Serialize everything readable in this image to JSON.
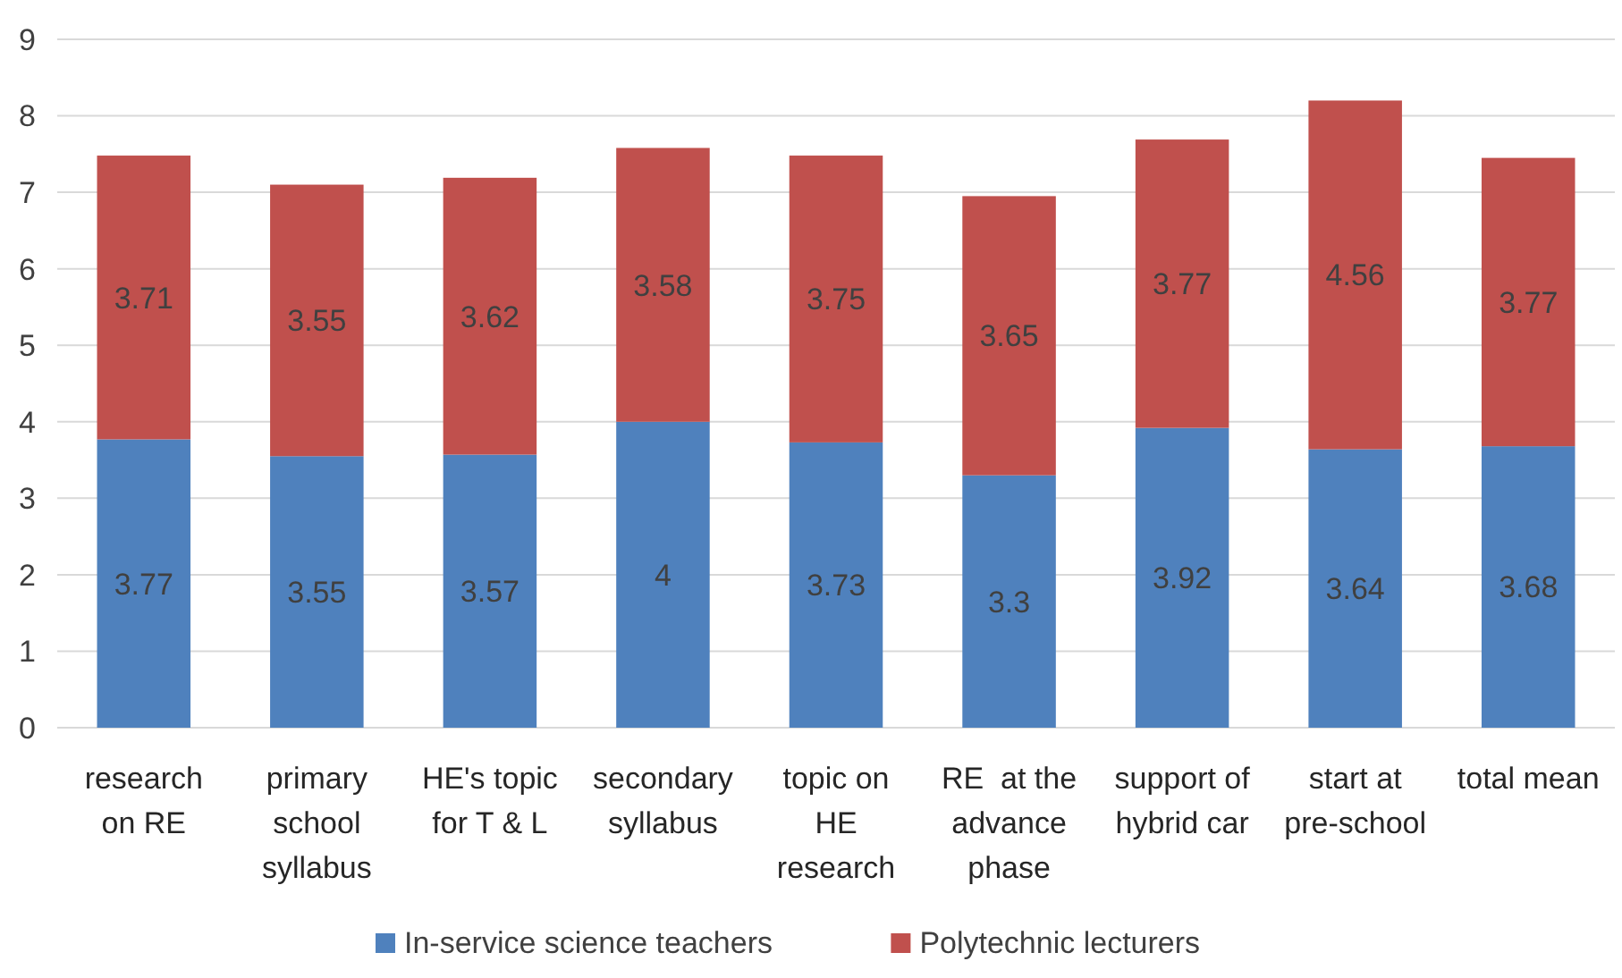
{
  "chart_data": {
    "type": "bar",
    "stacked": true,
    "categories": [
      "research on RE",
      "primary school syllabus",
      "HE's topic for T & L",
      "secondary syllabus",
      "topic on HE research",
      "RE  at the advance phase",
      "support of hybrid car",
      "start at pre-school",
      "total mean"
    ],
    "series": [
      {
        "name": "In-service science teachers",
        "color": "#4f81bd",
        "values": [
          3.77,
          3.55,
          3.57,
          4,
          3.73,
          3.3,
          3.92,
          3.64,
          3.68
        ]
      },
      {
        "name": "Polytechnic lecturers",
        "color": "#c0504d",
        "values": [
          3.71,
          3.55,
          3.62,
          3.58,
          3.75,
          3.65,
          3.77,
          4.56,
          3.77
        ]
      }
    ],
    "ylim": [
      0,
      9
    ],
    "yticks": [
      0,
      1,
      2,
      3,
      4,
      5,
      6,
      7,
      8,
      9
    ],
    "grid": "y",
    "legend": "bottom",
    "data_labels": true
  }
}
